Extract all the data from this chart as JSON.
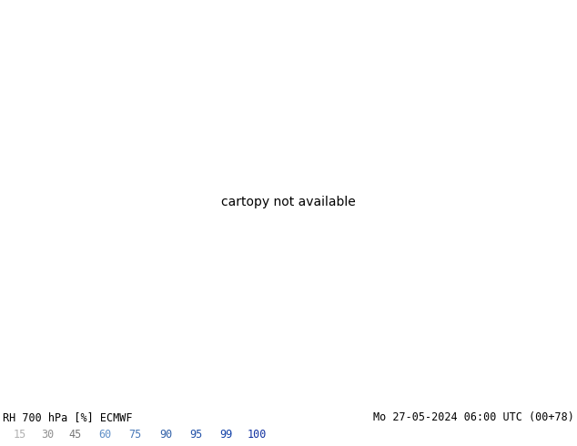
{
  "title_left": "RH 700 hPa [%] ECMWF",
  "title_right": "Mo 27-05-2024 06:00 UTC (00+78)",
  "colorbar_values": [
    15,
    30,
    45,
    60,
    75,
    90,
    95,
    99,
    100
  ],
  "colorbar_text_colors": [
    "#b0b0b0",
    "#909090",
    "#787878",
    "#6090c8",
    "#4878b8",
    "#3060a8",
    "#2050a8",
    "#1040a8",
    "#1030a0"
  ],
  "band_levels": [
    0,
    15,
    30,
    45,
    60,
    75,
    90,
    95,
    99,
    101
  ],
  "band_colors": [
    "#c8c0b0",
    "#c8c8c8",
    "#b8b8b8",
    "#a8a8a8",
    "#b8cce0",
    "#88b0d8",
    "#5888c8",
    "#3060b8",
    "#1040a0"
  ],
  "bg_color": "#ffffff",
  "map_extent": [
    20,
    150,
    -5,
    65
  ],
  "contour_levels": [
    15,
    30,
    60,
    70,
    75,
    80,
    90,
    95
  ],
  "contour_color": "#606060",
  "border_color": "#00aa00"
}
